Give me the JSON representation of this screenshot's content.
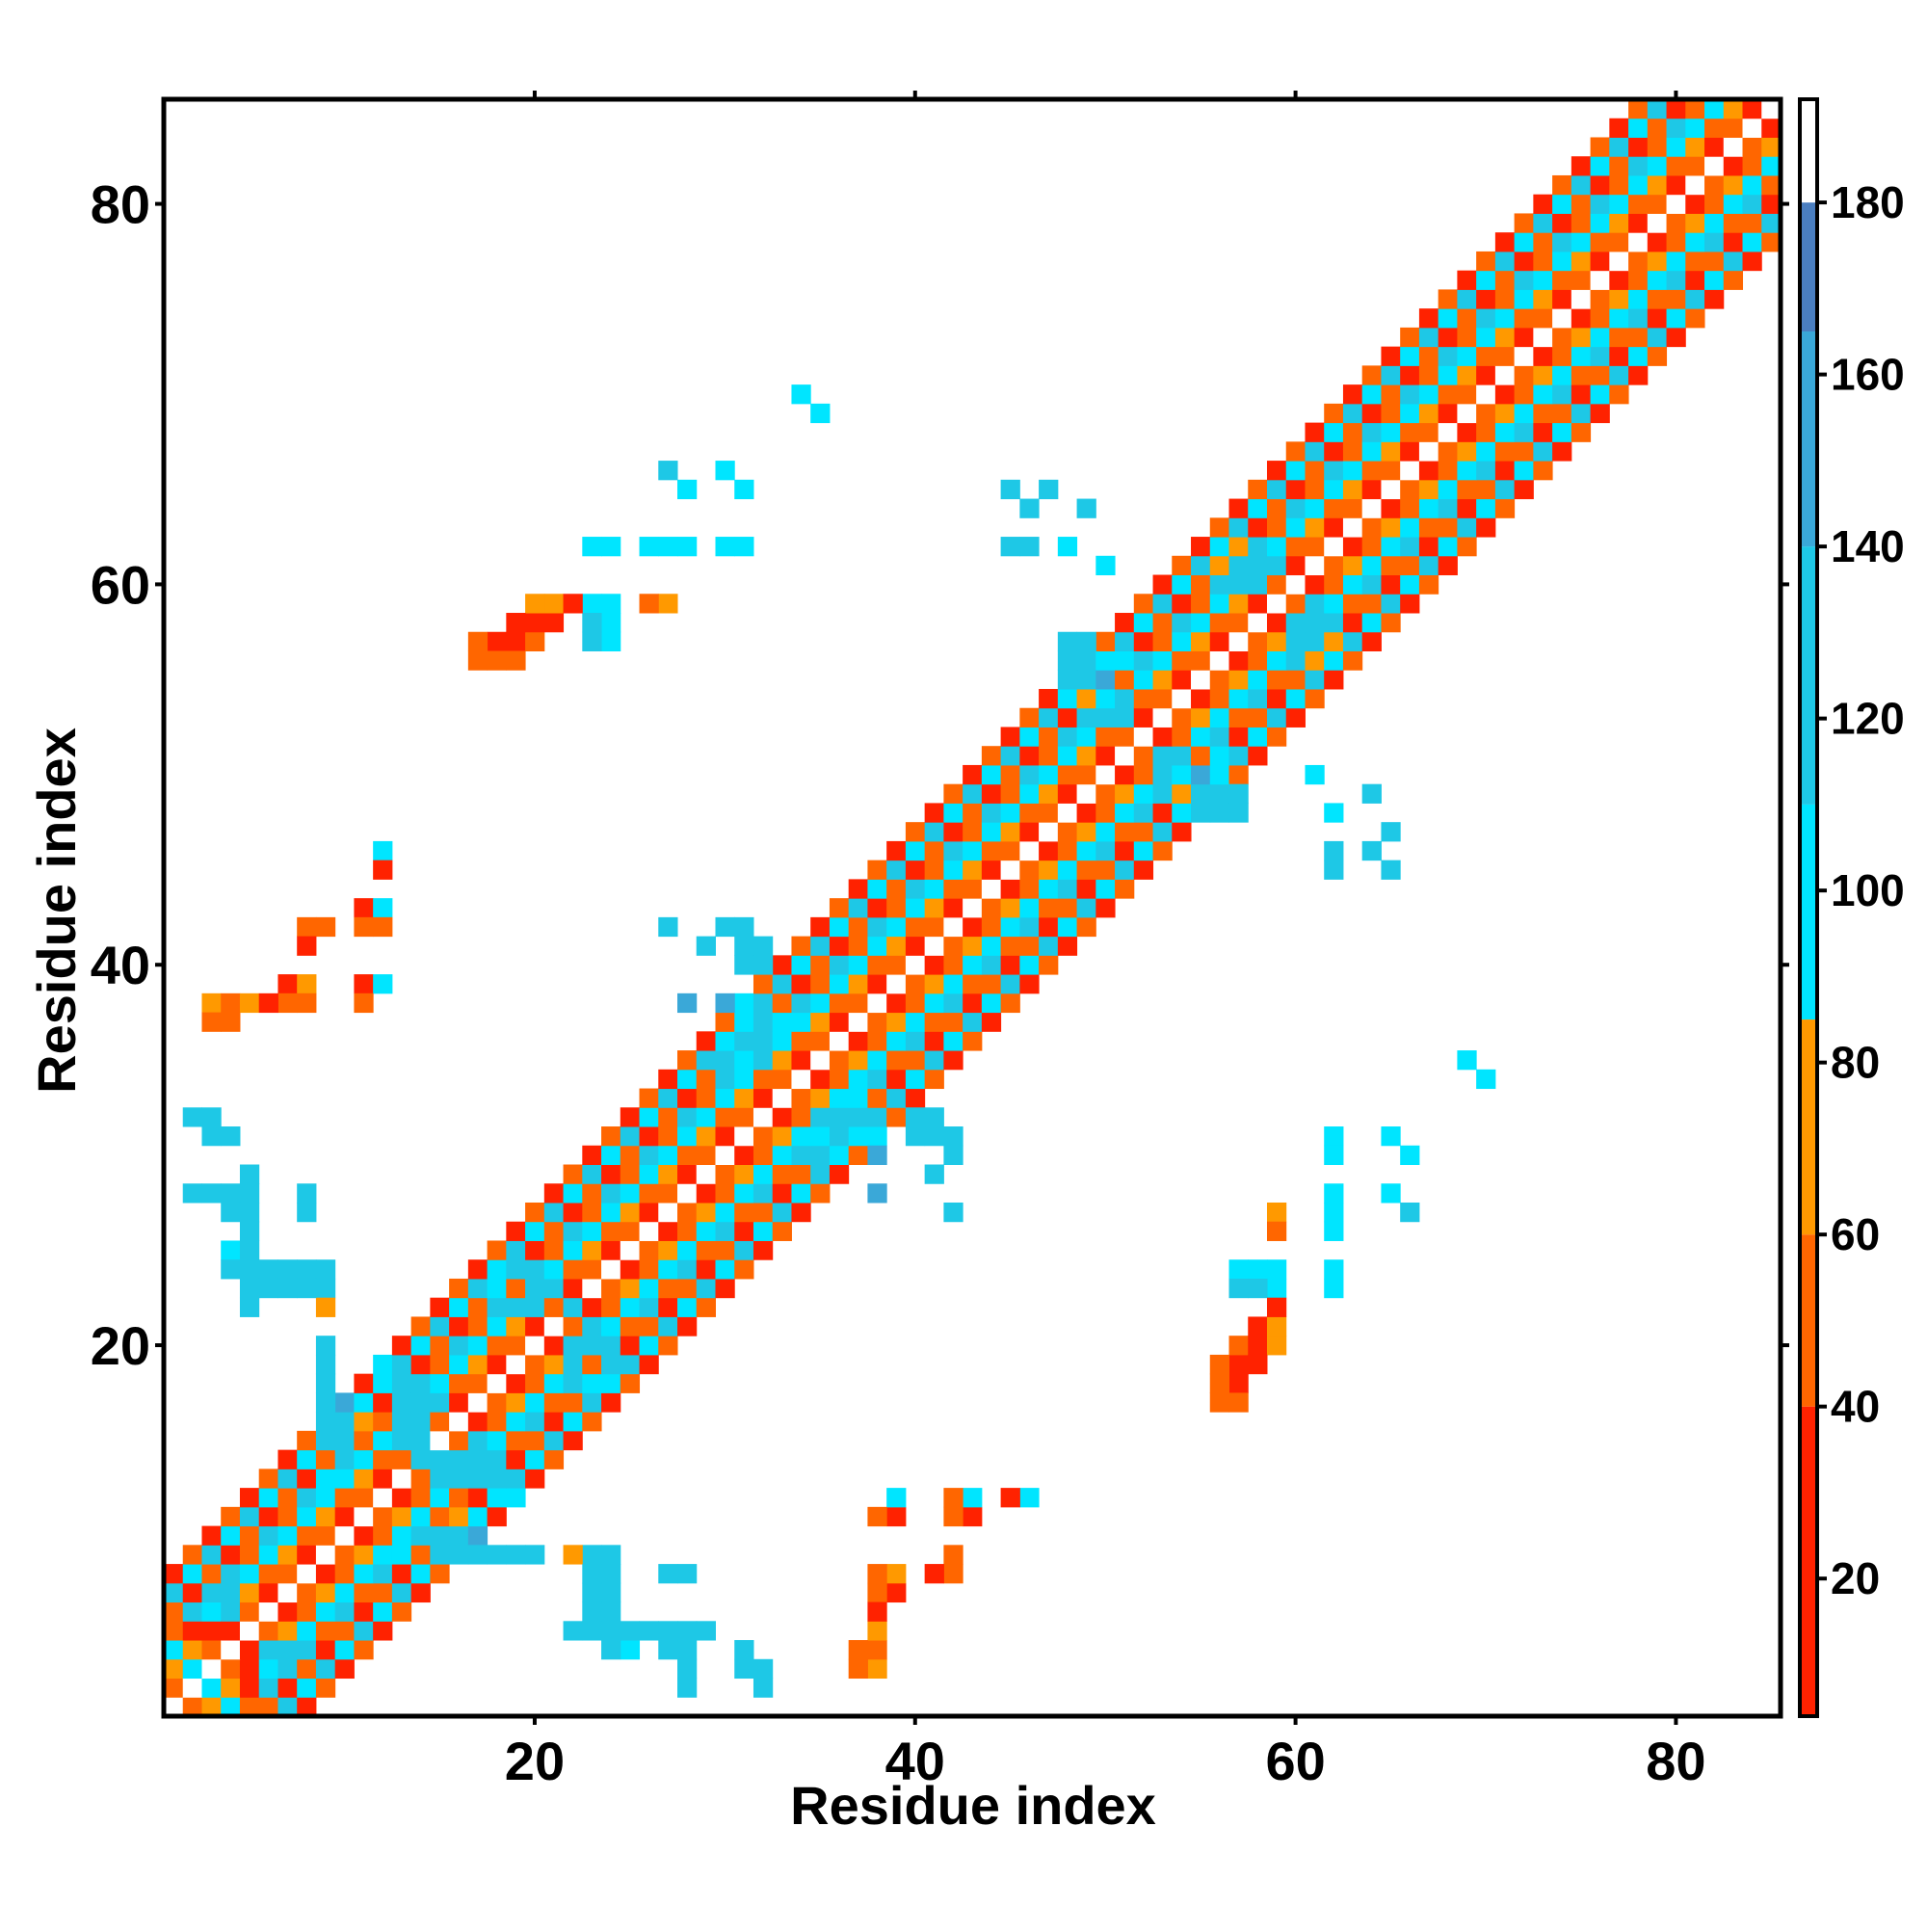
{
  "chart_data": {
    "type": "heatmap",
    "title": "",
    "xlabel": "Residue index",
    "ylabel": "Residue index",
    "xlim": [
      0.5,
      85.5
    ],
    "ylim": [
      0.5,
      85.5
    ],
    "x_ticks": [
      20,
      40,
      60,
      80
    ],
    "y_ticks": [
      20,
      40,
      60,
      80
    ],
    "grid": false,
    "colorbar": {
      "range": [
        4,
        192
      ],
      "ticks": [
        20,
        40,
        60,
        80,
        100,
        120,
        140,
        160,
        180
      ],
      "segments": [
        {
          "from": 4,
          "to": 40,
          "color": "#ff2200"
        },
        {
          "from": 40,
          "to": 60,
          "color": "#ff6600"
        },
        {
          "from": 60,
          "to": 85,
          "color": "#ff9900"
        },
        {
          "from": 85,
          "to": 110,
          "color": "#00e5ff"
        },
        {
          "from": 110,
          "to": 140,
          "color": "#1ec8e6"
        },
        {
          "from": 140,
          "to": 165,
          "color": "#3aa8d8"
        },
        {
          "from": 165,
          "to": 180,
          "color": "#4a7ec0"
        },
        {
          "from": 180,
          "to": 192,
          "color": "#ffffff"
        }
      ]
    },
    "diagonal_band": {
      "diagonal_value": 190,
      "offsets": [
        {
          "d": 1,
          "values": [
            20,
            45
          ]
        },
        {
          "d": 2,
          "values": [
            50,
            70
          ]
        },
        {
          "d": 3,
          "values": [
            95,
            105
          ]
        },
        {
          "d": 4,
          "values": [
            120,
            50
          ]
        },
        {
          "d": 5,
          "values": [
            25,
            55
          ]
        },
        {
          "d": 6,
          "values": [
            100,
            125
          ]
        },
        {
          "d": 7,
          "values": [
            60,
            30
          ]
        }
      ]
    },
    "cells": [
      {
        "x": 19,
        "y": 57,
        "v": 25
      },
      {
        "x": 20,
        "y": 57,
        "v": 50
      },
      {
        "x": 18,
        "y": 57,
        "v": 45
      },
      {
        "x": 21,
        "y": 58,
        "v": 30
      },
      {
        "x": 20,
        "y": 58,
        "v": 25
      },
      {
        "x": 21,
        "y": 59,
        "v": 70
      },
      {
        "x": 17,
        "y": 56,
        "v": 50
      },
      {
        "x": 18,
        "y": 56,
        "v": 55
      },
      {
        "x": 19,
        "y": 56,
        "v": 50
      },
      {
        "x": 23,
        "y": 59,
        "v": 30
      },
      {
        "x": 24,
        "y": 59,
        "v": 110
      },
      {
        "x": 24,
        "y": 58,
        "v": 110
      },
      {
        "x": 24,
        "y": 57,
        "v": 110
      },
      {
        "x": 27,
        "y": 59,
        "v": 70
      },
      {
        "x": 24,
        "y": 62,
        "v": 100
      },
      {
        "x": 27,
        "y": 62,
        "v": 100
      },
      {
        "x": 28,
        "y": 62,
        "v": 100
      },
      {
        "x": 31,
        "y": 62,
        "v": 110
      },
      {
        "x": 28,
        "y": 65,
        "v": 100
      },
      {
        "x": 31,
        "y": 65,
        "v": 100
      },
      {
        "x": 35,
        "y": 69,
        "v": 100
      },
      {
        "x": 46,
        "y": 64,
        "v": 130
      },
      {
        "x": 49,
        "y": 64,
        "v": 140
      },
      {
        "x": 46,
        "y": 62,
        "v": 140
      },
      {
        "x": 50,
        "y": 61,
        "v": 110
      },
      {
        "x": 12,
        "y": 46,
        "v": 100
      },
      {
        "x": 12,
        "y": 45,
        "v": 25
      },
      {
        "x": 11,
        "y": 43,
        "v": 25
      },
      {
        "x": 12,
        "y": 43,
        "v": 100
      },
      {
        "x": 11,
        "y": 42,
        "v": 60
      },
      {
        "x": 12,
        "y": 42,
        "v": 60
      },
      {
        "x": 8,
        "y": 42,
        "v": 60
      },
      {
        "x": 9,
        "y": 42,
        "v": 60
      },
      {
        "x": 8,
        "y": 41,
        "v": 25
      },
      {
        "x": 7,
        "y": 39,
        "v": 25
      },
      {
        "x": 8,
        "y": 39,
        "v": 70
      },
      {
        "x": 11,
        "y": 39,
        "v": 25
      },
      {
        "x": 12,
        "y": 39,
        "v": 100
      },
      {
        "x": 3,
        "y": 38,
        "v": 65
      },
      {
        "x": 4,
        "y": 38,
        "v": 65
      },
      {
        "x": 5,
        "y": 38,
        "v": 25
      },
      {
        "x": 7,
        "y": 38,
        "v": 70
      },
      {
        "x": 8,
        "y": 38,
        "v": 70
      },
      {
        "x": 11,
        "y": 38,
        "v": 70
      },
      {
        "x": 3,
        "y": 37,
        "v": 60
      },
      {
        "x": 2,
        "y": 32,
        "v": 135
      },
      {
        "x": 3,
        "y": 31,
        "v": 130
      },
      {
        "x": 5,
        "y": 29,
        "v": 130
      },
      {
        "x": 2,
        "y": 28,
        "v": 130
      },
      {
        "x": 3,
        "y": 28,
        "v": 130
      },
      {
        "x": 4,
        "y": 28,
        "v": 130
      },
      {
        "x": 5,
        "y": 28,
        "v": 140
      },
      {
        "x": 8,
        "y": 28,
        "v": 130
      },
      {
        "x": 4,
        "y": 27,
        "v": 130
      },
      {
        "x": 5,
        "y": 27,
        "v": 130
      },
      {
        "x": 8,
        "y": 27,
        "v": 135
      },
      {
        "x": 5,
        "y": 26,
        "v": 120
      },
      {
        "x": 4,
        "y": 25,
        "v": 110
      },
      {
        "x": 5,
        "y": 25,
        "v": 120
      },
      {
        "x": 4,
        "y": 24,
        "v": 120
      },
      {
        "x": 5,
        "y": 24,
        "v": 125
      },
      {
        "x": 6,
        "y": 24,
        "v": 120
      },
      {
        "x": 7,
        "y": 24,
        "v": 120
      },
      {
        "x": 8,
        "y": 24,
        "v": 125
      },
      {
        "x": 9,
        "y": 24,
        "v": 120
      },
      {
        "x": 5,
        "y": 23,
        "v": 120
      },
      {
        "x": 9,
        "y": 23,
        "v": 70
      },
      {
        "x": 29,
        "y": 41,
        "v": 120
      },
      {
        "x": 31,
        "y": 41,
        "v": 120
      },
      {
        "x": 32,
        "y": 41,
        "v": 120
      },
      {
        "x": 32,
        "y": 40,
        "v": 120
      },
      {
        "x": 30,
        "y": 38,
        "v": 150
      },
      {
        "x": 40,
        "y": 31,
        "v": 120
      },
      {
        "x": 41,
        "y": 31,
        "v": 120
      },
      {
        "x": 42,
        "y": 31,
        "v": 120
      },
      {
        "x": 42,
        "y": 30,
        "v": 120
      },
      {
        "x": 38,
        "y": 28,
        "v": 150
      },
      {
        "x": 42,
        "y": 27,
        "v": 130
      },
      {
        "x": 36,
        "y": 32,
        "v": 140
      },
      {
        "x": 37,
        "y": 32,
        "v": 140
      },
      {
        "x": 38,
        "y": 32,
        "v": 140
      },
      {
        "x": 35,
        "y": 31,
        "v": 100
      },
      {
        "x": 36,
        "y": 31,
        "v": 100
      },
      {
        "x": 37,
        "y": 31,
        "v": 100
      },
      {
        "x": 38,
        "y": 31,
        "v": 100
      },
      {
        "x": 70,
        "y": 34,
        "v": 100
      },
      {
        "x": 62,
        "y": 30,
        "v": 110
      },
      {
        "x": 66,
        "y": 30,
        "v": 100
      },
      {
        "x": 62,
        "y": 27,
        "v": 100
      },
      {
        "x": 62,
        "y": 26,
        "v": 100
      },
      {
        "x": 66,
        "y": 27,
        "v": 120
      },
      {
        "x": 59,
        "y": 26,
        "v": 60
      },
      {
        "x": 62,
        "y": 23,
        "v": 100
      },
      {
        "x": 57,
        "y": 23,
        "v": 120
      },
      {
        "x": 58,
        "y": 23,
        "v": 120
      },
      {
        "x": 59,
        "y": 23,
        "v": 100
      },
      {
        "x": 59,
        "y": 22,
        "v": 25
      },
      {
        "x": 57,
        "y": 20,
        "v": 50
      },
      {
        "x": 58,
        "y": 20,
        "v": 25
      },
      {
        "x": 59,
        "y": 20,
        "v": 70
      },
      {
        "x": 56,
        "y": 19,
        "v": 50
      },
      {
        "x": 57,
        "y": 19,
        "v": 25
      },
      {
        "x": 58,
        "y": 19,
        "v": 25
      },
      {
        "x": 56,
        "y": 18,
        "v": 50
      },
      {
        "x": 57,
        "y": 18,
        "v": 25
      },
      {
        "x": 56,
        "y": 17,
        "v": 50
      },
      {
        "x": 57,
        "y": 17,
        "v": 55
      },
      {
        "x": 62,
        "y": 48,
        "v": 110
      },
      {
        "x": 65,
        "y": 47,
        "v": 135
      },
      {
        "x": 62,
        "y": 45,
        "v": 140
      },
      {
        "x": 65,
        "y": 45,
        "v": 130
      },
      {
        "x": 55,
        "y": 48,
        "v": 120
      },
      {
        "x": 56,
        "y": 48,
        "v": 120
      },
      {
        "x": 57,
        "y": 48,
        "v": 120
      },
      {
        "x": 53,
        "y": 49,
        "v": 140
      },
      {
        "x": 54,
        "y": 49,
        "v": 150
      },
      {
        "x": 38,
        "y": 11,
        "v": 60
      },
      {
        "x": 39,
        "y": 11,
        "v": 25
      },
      {
        "x": 39,
        "y": 12,
        "v": 100
      },
      {
        "x": 42,
        "y": 12,
        "v": 60
      },
      {
        "x": 42,
        "y": 11,
        "v": 60
      },
      {
        "x": 43,
        "y": 11,
        "v": 25
      },
      {
        "x": 43,
        "y": 12,
        "v": 100
      },
      {
        "x": 45,
        "y": 12,
        "v": 25
      },
      {
        "x": 46,
        "y": 12,
        "v": 100
      },
      {
        "x": 38,
        "y": 8,
        "v": 60
      },
      {
        "x": 38,
        "y": 7,
        "v": 60
      },
      {
        "x": 39,
        "y": 7,
        "v": 25
      },
      {
        "x": 41,
        "y": 8,
        "v": 25
      },
      {
        "x": 42,
        "y": 8,
        "v": 50
      },
      {
        "x": 42,
        "y": 9,
        "v": 60
      },
      {
        "x": 38,
        "y": 6,
        "v": 25
      },
      {
        "x": 38,
        "y": 5,
        "v": 65
      },
      {
        "x": 38,
        "y": 4,
        "v": 60
      },
      {
        "x": 37,
        "y": 4,
        "v": 50
      },
      {
        "x": 16,
        "y": 9,
        "v": 120
      },
      {
        "x": 17,
        "y": 9,
        "v": 120
      },
      {
        "x": 18,
        "y": 9,
        "v": 120
      },
      {
        "x": 19,
        "y": 9,
        "v": 120
      },
      {
        "x": 22,
        "y": 9,
        "v": 70
      },
      {
        "x": 23,
        "y": 9,
        "v": 120
      },
      {
        "x": 23,
        "y": 8,
        "v": 125
      },
      {
        "x": 23,
        "y": 7,
        "v": 125
      },
      {
        "x": 23,
        "y": 6,
        "v": 125
      },
      {
        "x": 22,
        "y": 5,
        "v": 120
      },
      {
        "x": 23,
        "y": 5,
        "v": 120
      },
      {
        "x": 24,
        "y": 5,
        "v": 120
      },
      {
        "x": 25,
        "y": 5,
        "v": 120
      },
      {
        "x": 26,
        "y": 5,
        "v": 120
      },
      {
        "x": 27,
        "y": 5,
        "v": 120
      },
      {
        "x": 28,
        "y": 5,
        "v": 120
      },
      {
        "x": 29,
        "y": 5,
        "v": 125
      },
      {
        "x": 24,
        "y": 4,
        "v": 120
      },
      {
        "x": 25,
        "y": 4,
        "v": 100
      },
      {
        "x": 27,
        "y": 4,
        "v": 130
      },
      {
        "x": 28,
        "y": 4,
        "v": 120
      },
      {
        "x": 28,
        "y": 3,
        "v": 125
      },
      {
        "x": 31,
        "y": 4,
        "v": 130
      },
      {
        "x": 32,
        "y": 3,
        "v": 130
      },
      {
        "x": 27,
        "y": 8,
        "v": 130
      },
      {
        "x": 28,
        "y": 8,
        "v": 130
      },
      {
        "x": 9,
        "y": 20,
        "v": 120
      },
      {
        "x": 9,
        "y": 19,
        "v": 120
      },
      {
        "x": 9,
        "y": 18,
        "v": 120
      },
      {
        "x": 10,
        "y": 17,
        "v": 140
      },
      {
        "x": 11,
        "y": 17,
        "v": 120
      },
      {
        "x": 10,
        "y": 16,
        "v": 130
      },
      {
        "x": 11,
        "y": 16,
        "v": 25
      },
      {
        "x": 12,
        "y": 16,
        "v": 60
      },
      {
        "x": 11,
        "y": 15,
        "v": 45
      },
      {
        "x": 12,
        "y": 19,
        "v": 100
      },
      {
        "x": 13,
        "y": 19,
        "v": 120
      },
      {
        "x": 12,
        "y": 18,
        "v": 120
      },
      {
        "x": 14,
        "y": 18,
        "v": 125
      },
      {
        "x": 13,
        "y": 17,
        "v": 125
      },
      {
        "x": 14,
        "y": 17,
        "v": 120
      },
      {
        "x": 15,
        "y": 17,
        "v": 120
      },
      {
        "x": 13,
        "y": 16,
        "v": 120
      },
      {
        "x": 14,
        "y": 16,
        "v": 120
      },
      {
        "x": 13,
        "y": 15,
        "v": 110
      },
      {
        "x": 14,
        "y": 14,
        "v": 120
      },
      {
        "x": 15,
        "y": 14,
        "v": 120
      },
      {
        "x": 16,
        "y": 14,
        "v": 120
      },
      {
        "x": 15,
        "y": 13,
        "v": 120
      },
      {
        "x": 16,
        "y": 13,
        "v": 120
      },
      {
        "x": 17,
        "y": 13,
        "v": 125
      },
      {
        "x": 18,
        "y": 13,
        "v": 125
      },
      {
        "x": 18,
        "y": 12,
        "v": 100
      },
      {
        "x": 19,
        "y": 12,
        "v": 100
      },
      {
        "x": 15,
        "y": 10,
        "v": 140
      },
      {
        "x": 16,
        "y": 10,
        "v": 140
      },
      {
        "x": 17,
        "y": 10,
        "v": 150
      },
      {
        "x": 16,
        "y": 11,
        "v": 70
      },
      {
        "x": 17,
        "y": 11,
        "v": 100
      },
      {
        "x": 13,
        "y": 9,
        "v": 100
      },
      {
        "x": 2,
        "y": 3,
        "v": 110
      },
      {
        "x": 2,
        "y": 4,
        "v": 75
      },
      {
        "x": 3,
        "y": 5,
        "v": 25
      },
      {
        "x": 2,
        "y": 5,
        "v": 25
      },
      {
        "x": 3,
        "y": 8,
        "v": 60
      },
      {
        "x": 3,
        "y": 7,
        "v": 120
      },
      {
        "x": 4,
        "y": 7,
        "v": 120
      },
      {
        "x": 4,
        "y": 6,
        "v": 120
      },
      {
        "x": 18,
        "y": 22,
        "v": 120
      },
      {
        "x": 19,
        "y": 22,
        "v": 120
      },
      {
        "x": 20,
        "y": 22,
        "v": 120
      },
      {
        "x": 21,
        "y": 23,
        "v": 120
      },
      {
        "x": 22,
        "y": 22,
        "v": 120
      },
      {
        "x": 18,
        "y": 23,
        "v": 110
      },
      {
        "x": 25,
        "y": 19,
        "v": 120
      },
      {
        "x": 24,
        "y": 19,
        "v": 120
      },
      {
        "x": 23,
        "y": 20,
        "v": 120
      },
      {
        "x": 23,
        "y": 21,
        "v": 120
      },
      {
        "x": 24,
        "y": 20,
        "v": 125
      },
      {
        "x": 31,
        "y": 36,
        "v": 125
      },
      {
        "x": 32,
        "y": 36,
        "v": 140
      },
      {
        "x": 31,
        "y": 37,
        "v": 110
      },
      {
        "x": 32,
        "y": 37,
        "v": 120
      },
      {
        "x": 32,
        "y": 38,
        "v": 130
      },
      {
        "x": 33,
        "y": 37,
        "v": 100
      },
      {
        "x": 33,
        "y": 36,
        "v": 110
      },
      {
        "x": 31,
        "y": 38,
        "v": 110
      },
      {
        "x": 32,
        "y": 35,
        "v": 140
      },
      {
        "x": 30,
        "y": 35,
        "v": 130
      },
      {
        "x": 29,
        "y": 35,
        "v": 125
      },
      {
        "x": 49,
        "y": 57,
        "v": 120
      },
      {
        "x": 49,
        "y": 56,
        "v": 120
      },
      {
        "x": 50,
        "y": 55,
        "v": 150
      },
      {
        "x": 50,
        "y": 54,
        "v": 130
      },
      {
        "x": 49,
        "y": 54,
        "v": 70
      },
      {
        "x": 51,
        "y": 54,
        "v": 140
      },
      {
        "x": 51,
        "y": 53,
        "v": 120
      },
      {
        "x": 53,
        "y": 50,
        "v": 120
      },
      {
        "x": 54,
        "y": 50,
        "v": 100
      },
      {
        "x": 55,
        "y": 52,
        "v": 100
      },
      {
        "x": 56,
        "y": 51,
        "v": 110
      },
      {
        "x": 57,
        "y": 61,
        "v": 120
      },
      {
        "x": 58,
        "y": 61,
        "v": 125
      },
      {
        "x": 59,
        "y": 61,
        "v": 120
      },
      {
        "x": 57,
        "y": 60,
        "v": 120
      },
      {
        "x": 58,
        "y": 60,
        "v": 120
      },
      {
        "x": 60,
        "y": 58,
        "v": 140
      },
      {
        "x": 61,
        "y": 58,
        "v": 125
      },
      {
        "x": 60,
        "y": 57,
        "v": 120
      },
      {
        "x": 61,
        "y": 57,
        "v": 120
      },
      {
        "x": 62,
        "y": 57,
        "v": 25
      },
      {
        "x": 61,
        "y": 56,
        "v": 70
      },
      {
        "x": 57,
        "y": 62,
        "v": 70
      }
    ]
  }
}
